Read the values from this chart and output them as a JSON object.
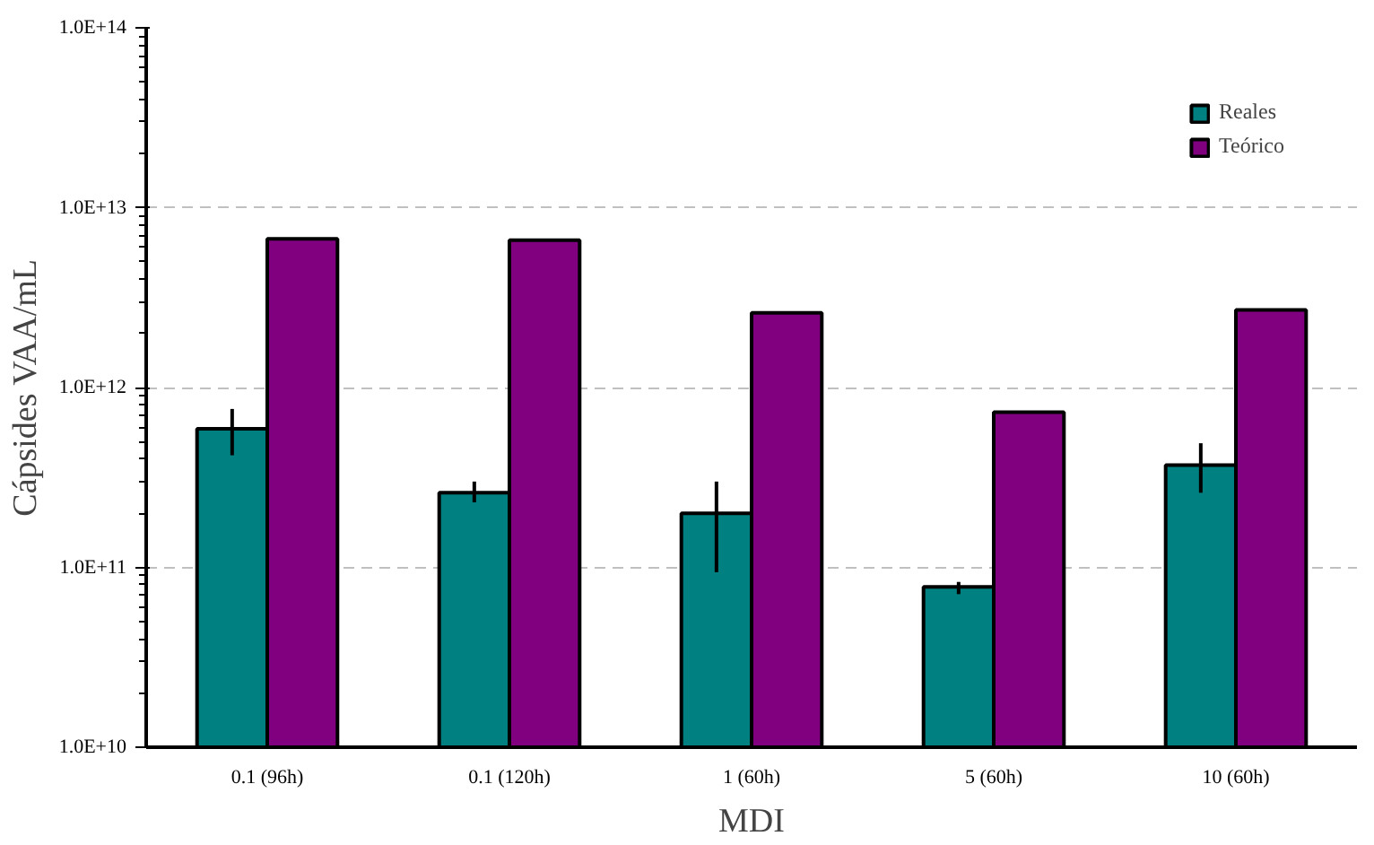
{
  "chart_data": {
    "type": "bar",
    "xlabel": "MDI",
    "ylabel": "Cápsides VAA/mL",
    "categories": [
      "0.1 (96h)",
      "0.1 (120h)",
      "1 (60h)",
      "5 (60h)",
      "10 (60h)"
    ],
    "series": [
      {
        "name": "Reales",
        "color": "#008080",
        "values": [
          590000000000.0,
          260000000000.0,
          200000000000.0,
          78000000000.0,
          370000000000.0
        ],
        "errors": [
          [
            420000000000.0,
            760000000000.0
          ],
          [
            230000000000.0,
            300000000000.0
          ],
          [
            94000000000.0,
            300000000000.0
          ],
          [
            71000000000.0,
            83000000000.0
          ],
          [
            260000000000.0,
            490000000000.0
          ]
        ]
      },
      {
        "name": "Teórico",
        "color": "#800080",
        "values": [
          6700000000000.0,
          6600000000000.0,
          2600000000000.0,
          730000000000.0,
          2700000000000.0
        ]
      }
    ],
    "log": "y",
    "ylim": [
      10000000000.0,
      100000000000000.0
    ],
    "yticks": [
      {
        "value": 10000000000.0,
        "label": "1.0E+10"
      },
      {
        "value": 100000000000.0,
        "label": "1.0E+11"
      },
      {
        "value": 1000000000000.0,
        "label": "1.0E+12"
      },
      {
        "value": 10000000000000.0,
        "label": "1.0E+13"
      },
      {
        "value": 100000000000000.0,
        "label": "1.0E+14"
      }
    ],
    "grid": "y",
    "legend": "top right"
  }
}
